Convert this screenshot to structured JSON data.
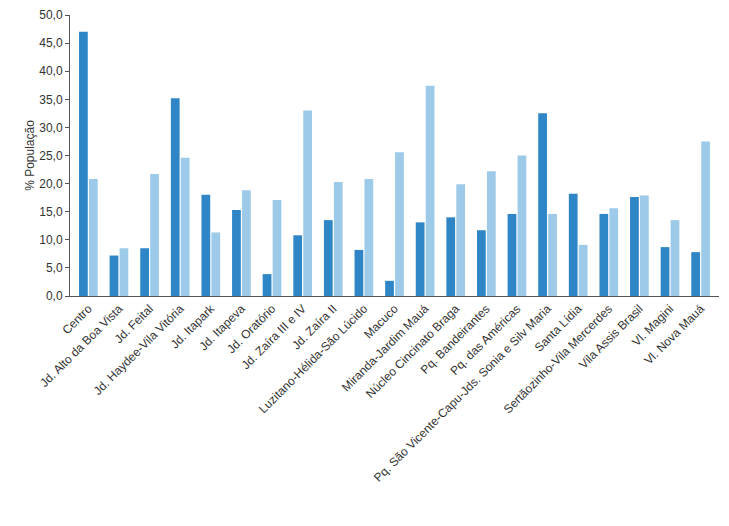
{
  "chart_data": {
    "type": "bar",
    "y_label": "% População",
    "categories": [
      "Centro",
      "Jd. Alto da Boa Vista",
      "Jd. Feital",
      "Jd. Haydee-Vila Vitória",
      "Jd. Itapark",
      "Jd. Itapeva",
      "Jd. Oratório",
      "Jd. Zaíra III e IV",
      "Jd. Zaíra II",
      "Luzitano-Hélida-São Lúcido",
      "Macuco",
      "Miranda-Jardim Mauá",
      "Núcleo Cincinato Braga",
      "Pq. Bandeirantes",
      "Pq. das Américas",
      "Pq. São Vicente-Capu-Jds. Sonia e Silv Maria",
      "Santa Lídia",
      "Sertãozinho-Vila Mercerdes",
      "Vila Assis Brasil",
      "Vl. Magini",
      "Vl. Nova Mauá"
    ],
    "series": [
      {
        "color": "#2f86c6",
        "values": [
          47.0,
          7.2,
          8.5,
          35.2,
          18.0,
          15.3,
          3.9,
          10.8,
          13.5,
          8.2,
          2.7,
          13.1,
          14.0,
          11.7,
          14.6,
          32.5,
          18.2,
          14.6,
          17.6,
          8.7,
          7.8
        ]
      },
      {
        "color": "#9ecae9",
        "values": [
          20.8,
          8.5,
          21.7,
          24.6,
          11.3,
          18.8,
          17.1,
          33.0,
          20.3,
          20.8,
          25.6,
          37.4,
          19.9,
          22.2,
          25.0,
          14.6,
          9.1,
          15.6,
          17.9,
          13.5,
          27.5
        ]
      }
    ],
    "ylim": [
      0,
      50
    ],
    "yticks": [
      {
        "value": 0,
        "label": "0,0"
      },
      {
        "value": 5,
        "label": "5,0"
      },
      {
        "value": 10,
        "label": "10,0"
      },
      {
        "value": 15,
        "label": "15,0"
      },
      {
        "value": 20,
        "label": "20,0"
      },
      {
        "value": 25,
        "label": "25,0"
      },
      {
        "value": 30,
        "label": "30,0"
      },
      {
        "value": 35,
        "label": "35,0"
      },
      {
        "value": 40,
        "label": "40,0"
      },
      {
        "value": 45,
        "label": "45,0"
      },
      {
        "value": 50,
        "label": "50,0"
      }
    ],
    "grid": false
  }
}
